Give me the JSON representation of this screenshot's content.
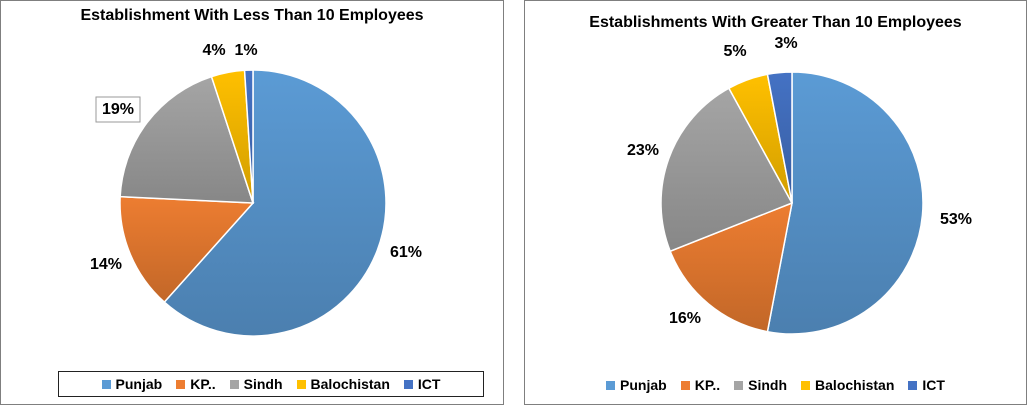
{
  "colors": {
    "Punjab": "#5b9bd5",
    "KP..": "#ed7d31",
    "Sindh": "#a5a5a5",
    "Balochistan": "#ffc000",
    "ICT": "#4472c4"
  },
  "chart_data": [
    {
      "type": "pie",
      "title": "Establishment With Less Than 10 Employees",
      "categories": [
        "Punjab",
        "KP..",
        "Sindh",
        "Balochistan",
        "ICT"
      ],
      "values": [
        61,
        14,
        19,
        4,
        1
      ],
      "labels": [
        "61%",
        "14%",
        "19%",
        "4%",
        "1%"
      ],
      "legend": "bottom"
    },
    {
      "type": "pie",
      "title": "Establishments With Greater Than 10 Employees",
      "categories": [
        "Punjab",
        "KP..",
        "Sindh",
        "Balochistan",
        "ICT"
      ],
      "values": [
        53,
        16,
        23,
        5,
        3
      ],
      "labels": [
        "53%",
        "16%",
        "23%",
        "5%",
        "3%"
      ],
      "legend": "bottom"
    }
  ]
}
